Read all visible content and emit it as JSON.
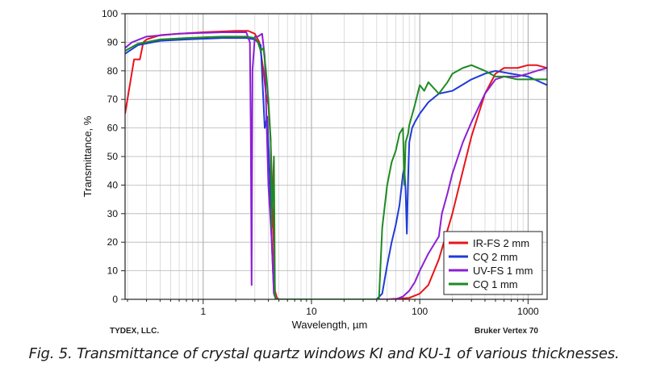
{
  "chart_data": {
    "type": "line",
    "title": "",
    "xlabel": "Wavelength, µm",
    "ylabel": "Transmittance, %",
    "xscale": "log",
    "xlim": [
      0.19,
      1500
    ],
    "ylim": [
      0,
      100
    ],
    "x_ticks": [
      {
        "value": 1,
        "label": "1"
      },
      {
        "value": 10,
        "label": "10"
      },
      {
        "value": 100,
        "label": "100"
      },
      {
        "value": 1000,
        "label": "1000"
      }
    ],
    "y_ticks": [
      0,
      10,
      20,
      30,
      40,
      50,
      60,
      70,
      80,
      90,
      100
    ],
    "grid": true,
    "legend_position": "bottom-right",
    "series": [
      {
        "name": "IR-FS 2 mm",
        "color": "#e8141b",
        "points": [
          [
            0.19,
            65
          ],
          [
            0.23,
            84
          ],
          [
            0.26,
            84
          ],
          [
            0.28,
            90
          ],
          [
            0.3,
            91
          ],
          [
            0.4,
            92.5
          ],
          [
            0.6,
            93
          ],
          [
            1,
            93.5
          ],
          [
            2,
            94
          ],
          [
            2.6,
            94
          ],
          [
            3,
            93
          ],
          [
            3.3,
            90
          ],
          [
            3.6,
            80
          ],
          [
            3.8,
            72
          ],
          [
            4,
            68
          ],
          [
            4.2,
            55
          ],
          [
            4.4,
            30
          ],
          [
            4.6,
            3
          ],
          [
            4.8,
            0.5
          ],
          [
            5,
            0
          ],
          [
            50,
            0
          ],
          [
            80,
            0.5
          ],
          [
            100,
            2
          ],
          [
            120,
            5
          ],
          [
            150,
            14
          ],
          [
            200,
            30
          ],
          [
            250,
            45
          ],
          [
            300,
            57
          ],
          [
            400,
            72
          ],
          [
            500,
            79
          ],
          [
            600,
            81
          ],
          [
            800,
            81
          ],
          [
            1000,
            82
          ],
          [
            1200,
            82
          ],
          [
            1500,
            81
          ]
        ]
      },
      {
        "name": "CQ 2 mm",
        "color": "#1f3bd6",
        "points": [
          [
            0.19,
            86
          ],
          [
            0.25,
            89
          ],
          [
            0.4,
            90.5
          ],
          [
            0.7,
            91
          ],
          [
            1.5,
            91.5
          ],
          [
            2.5,
            91.5
          ],
          [
            3,
            91
          ],
          [
            3.4,
            89
          ],
          [
            3.7,
            60
          ],
          [
            3.9,
            64
          ],
          [
            4.1,
            45
          ],
          [
            4.3,
            20
          ],
          [
            4.5,
            2
          ],
          [
            4.7,
            0
          ],
          [
            40,
            0
          ],
          [
            45,
            2
          ],
          [
            50,
            12
          ],
          [
            55,
            20
          ],
          [
            60,
            26
          ],
          [
            65,
            33
          ],
          [
            70,
            44
          ],
          [
            72,
            46
          ],
          [
            74,
            38
          ],
          [
            76,
            23
          ],
          [
            78,
            42
          ],
          [
            80,
            55
          ],
          [
            85,
            60
          ],
          [
            90,
            62
          ],
          [
            100,
            65
          ],
          [
            120,
            69
          ],
          [
            150,
            72
          ],
          [
            200,
            73
          ],
          [
            300,
            77
          ],
          [
            400,
            79
          ],
          [
            500,
            80
          ],
          [
            700,
            79
          ],
          [
            1000,
            78
          ],
          [
            1500,
            75
          ]
        ]
      },
      {
        "name": "UV-FS 1 mm",
        "color": "#8b1fd4",
        "points": [
          [
            0.19,
            88
          ],
          [
            0.22,
            90
          ],
          [
            0.3,
            92
          ],
          [
            0.6,
            93
          ],
          [
            1.5,
            93.5
          ],
          [
            2.5,
            93.5
          ],
          [
            2.7,
            90
          ],
          [
            2.75,
            60
          ],
          [
            2.8,
            5
          ],
          [
            2.85,
            80
          ],
          [
            3,
            92
          ],
          [
            3.2,
            92
          ],
          [
            3.5,
            93
          ],
          [
            3.7,
            85
          ],
          [
            4,
            40
          ],
          [
            4.3,
            20
          ],
          [
            4.5,
            2
          ],
          [
            4.7,
            0
          ],
          [
            60,
            0
          ],
          [
            70,
            1
          ],
          [
            80,
            3
          ],
          [
            90,
            6
          ],
          [
            100,
            10
          ],
          [
            120,
            16
          ],
          [
            150,
            22
          ],
          [
            160,
            30
          ],
          [
            180,
            37
          ],
          [
            200,
            44
          ],
          [
            250,
            55
          ],
          [
            300,
            62
          ],
          [
            400,
            72
          ],
          [
            500,
            77
          ],
          [
            600,
            78
          ],
          [
            800,
            78
          ],
          [
            1000,
            79
          ],
          [
            1200,
            80
          ],
          [
            1500,
            81
          ]
        ]
      },
      {
        "name": "CQ 1 mm",
        "color": "#1e8a23",
        "points": [
          [
            0.19,
            87
          ],
          [
            0.25,
            89.5
          ],
          [
            0.4,
            91
          ],
          [
            0.7,
            91.5
          ],
          [
            1.5,
            92
          ],
          [
            2.5,
            92
          ],
          [
            3,
            91.5
          ],
          [
            3.2,
            90
          ],
          [
            3.4,
            87
          ],
          [
            3.6,
            88
          ],
          [
            3.8,
            80
          ],
          [
            4,
            70
          ],
          [
            4.2,
            56
          ],
          [
            4.3,
            25
          ],
          [
            4.5,
            50
          ],
          [
            4.6,
            1
          ],
          [
            4.8,
            0
          ],
          [
            42,
            0
          ],
          [
            45,
            25
          ],
          [
            50,
            40
          ],
          [
            55,
            48
          ],
          [
            60,
            52
          ],
          [
            65,
            58
          ],
          [
            70,
            60
          ],
          [
            72,
            40
          ],
          [
            74,
            55
          ],
          [
            78,
            58
          ],
          [
            80,
            61
          ],
          [
            90,
            68
          ],
          [
            100,
            75
          ],
          [
            110,
            73
          ],
          [
            120,
            76
          ],
          [
            150,
            72
          ],
          [
            180,
            76
          ],
          [
            200,
            79
          ],
          [
            250,
            81
          ],
          [
            300,
            82
          ],
          [
            400,
            80
          ],
          [
            500,
            78
          ],
          [
            600,
            78
          ],
          [
            800,
            77
          ],
          [
            1000,
            77
          ],
          [
            1500,
            77
          ]
        ]
      }
    ]
  },
  "footer": {
    "left": "TYDEX, LLC.",
    "right": "Bruker Vertex 70"
  },
  "caption": "Fig.  5. Transmittance of crystal quartz windows KI and KU-1 of various thicknesses."
}
